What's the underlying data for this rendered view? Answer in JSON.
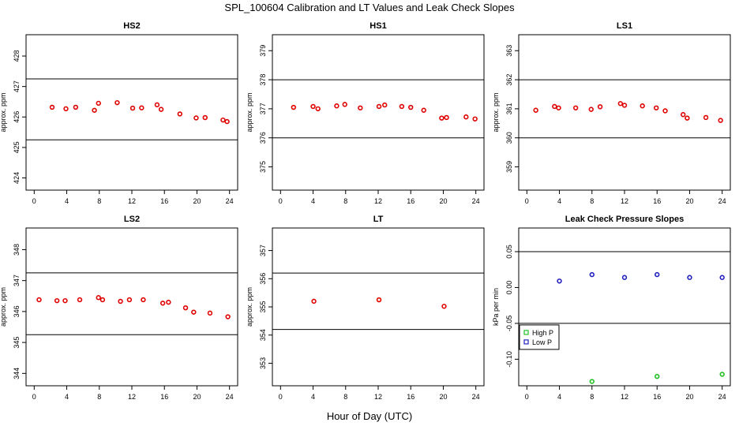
{
  "figure": {
    "title": "SPL_100604  Calibration and LT Values and Leak Check Slopes",
    "xlabel": "Hour of Day (UTC)"
  },
  "colors": {
    "calibration_point": "#e00000",
    "high_p": "#22c022",
    "low_p": "#2020c0",
    "axis": "#000000"
  },
  "chart_data": [
    {
      "type": "scatter",
      "title": "HS2",
      "ylabel": "approx. ppm",
      "xlim": [
        -1,
        25
      ],
      "ylim": [
        423.6,
        428.7
      ],
      "xticks": [
        0,
        4,
        8,
        12,
        16,
        20,
        24
      ],
      "xtick_labels": [
        "0",
        "4",
        "8",
        "12",
        "16",
        "20",
        "24"
      ],
      "yticks": [
        424,
        425,
        426,
        427,
        428
      ],
      "ytick_labels": [
        "424",
        "425",
        "426",
        "427",
        "428"
      ],
      "hlines": [
        427.25,
        425.25
      ],
      "series": [
        {
          "marker": "o",
          "color": "#e00000",
          "x": [
            2.2,
            3.9,
            5.1,
            7.4,
            7.9,
            10.2,
            12.1,
            13.2,
            15.1,
            15.6,
            17.9,
            19.9,
            21.0,
            23.2,
            23.7
          ],
          "y": [
            426.32,
            426.27,
            426.32,
            426.22,
            426.45,
            426.47,
            426.29,
            426.3,
            426.4,
            426.25,
            426.1,
            425.97,
            425.98,
            425.9,
            425.85
          ]
        }
      ]
    },
    {
      "type": "scatter",
      "title": "HS1",
      "ylabel": "approx. ppm",
      "xlim": [
        -1,
        25
      ],
      "ylim": [
        374.2,
        379.55
      ],
      "xticks": [
        0,
        4,
        8,
        12,
        16,
        20,
        24
      ],
      "xtick_labels": [
        "0",
        "4",
        "8",
        "12",
        "16",
        "20",
        "24"
      ],
      "yticks": [
        375,
        376,
        377,
        378,
        379
      ],
      "ytick_labels": [
        "375",
        "376",
        "377",
        "378",
        "379"
      ],
      "hlines": [
        378.0,
        376.0
      ],
      "series": [
        {
          "marker": "o",
          "color": "#e00000",
          "x": [
            1.6,
            4.0,
            4.6,
            6.9,
            7.9,
            9.8,
            12.1,
            12.8,
            14.9,
            16.0,
            17.6,
            19.8,
            20.4,
            22.8,
            23.9
          ],
          "y": [
            377.05,
            377.08,
            377.0,
            377.1,
            377.15,
            377.03,
            377.08,
            377.13,
            377.08,
            377.05,
            376.95,
            376.68,
            376.7,
            376.72,
            376.65
          ]
        }
      ]
    },
    {
      "type": "scatter",
      "title": "LS1",
      "ylabel": "approx. ppm",
      "xlim": [
        -1,
        25
      ],
      "ylim": [
        358.2,
        363.55
      ],
      "xticks": [
        0,
        4,
        8,
        12,
        16,
        20,
        24
      ],
      "xtick_labels": [
        "0",
        "4",
        "8",
        "12",
        "16",
        "20",
        "24"
      ],
      "yticks": [
        359,
        360,
        361,
        362,
        363
      ],
      "ytick_labels": [
        "359",
        "360",
        "361",
        "362",
        "363"
      ],
      "hlines": [
        362.0,
        360.0
      ],
      "series": [
        {
          "marker": "o",
          "color": "#e00000",
          "x": [
            1.1,
            3.4,
            3.9,
            6.0,
            7.9,
            9.0,
            11.5,
            12.0,
            14.2,
            15.9,
            17.0,
            19.2,
            19.7,
            22.0,
            23.8
          ],
          "y": [
            360.95,
            361.08,
            361.03,
            361.03,
            360.98,
            361.07,
            361.18,
            361.12,
            361.1,
            361.03,
            360.93,
            360.8,
            360.68,
            360.7,
            360.6
          ]
        }
      ]
    },
    {
      "type": "scatter",
      "title": "LS2",
      "ylabel": "approx. ppm",
      "xlim": [
        -1,
        25
      ],
      "ylim": [
        343.6,
        348.7
      ],
      "xticks": [
        0,
        4,
        8,
        12,
        16,
        20,
        24
      ],
      "xtick_labels": [
        "0",
        "4",
        "8",
        "12",
        "16",
        "20",
        "24"
      ],
      "yticks": [
        344,
        345,
        346,
        347,
        348
      ],
      "ytick_labels": [
        "344",
        "345",
        "346",
        "347",
        "348"
      ],
      "hlines": [
        347.25,
        345.25
      ],
      "series": [
        {
          "marker": "o",
          "color": "#e00000",
          "x": [
            0.6,
            2.8,
            3.8,
            5.6,
            7.9,
            8.4,
            10.6,
            11.7,
            13.4,
            15.8,
            16.5,
            18.6,
            19.6,
            21.6,
            23.8
          ],
          "y": [
            346.38,
            346.35,
            346.35,
            346.38,
            346.45,
            346.38,
            346.33,
            346.38,
            346.38,
            346.27,
            346.3,
            346.12,
            345.98,
            345.95,
            345.83
          ]
        }
      ]
    },
    {
      "type": "scatter",
      "title": "LT",
      "ylabel": "approx. ppm",
      "xlim": [
        -1,
        25
      ],
      "ylim": [
        352.2,
        357.8
      ],
      "xticks": [
        0,
        4,
        8,
        12,
        16,
        20,
        24
      ],
      "xtick_labels": [
        "0",
        "4",
        "8",
        "12",
        "16",
        "20",
        "24"
      ],
      "yticks": [
        353,
        354,
        355,
        356,
        357
      ],
      "ytick_labels": [
        "353",
        "354",
        "355",
        "356",
        "357"
      ],
      "hlines": [
        356.2,
        354.2
      ],
      "series": [
        {
          "marker": "o",
          "color": "#e00000",
          "x": [
            4.1,
            12.1,
            20.1
          ],
          "y": [
            355.2,
            355.25,
            355.02
          ]
        }
      ]
    },
    {
      "type": "scatter",
      "title": "Leak Check Pressure Slopes",
      "ylabel": "kPa per min",
      "xlim": [
        -1,
        25
      ],
      "ylim": [
        -0.137,
        0.083
      ],
      "xticks": [
        0,
        4,
        8,
        12,
        16,
        20,
        24
      ],
      "xtick_labels": [
        "0",
        "4",
        "8",
        "12",
        "16",
        "20",
        "24"
      ],
      "yticks": [
        -0.1,
        -0.05,
        0.0,
        0.05
      ],
      "ytick_labels": [
        "-0.10",
        "-0.05",
        "0.00",
        "0.05"
      ],
      "hlines": [
        0.05,
        -0.05
      ],
      "legend": {
        "position": "left",
        "entries": [
          {
            "label": "High P",
            "color": "#22c022"
          },
          {
            "label": "Low P",
            "color": "#2020c0"
          }
        ]
      },
      "series": [
        {
          "name": "High P",
          "marker": "o",
          "color": "#22c022",
          "x": [
            8.0,
            16.0,
            24.0
          ],
          "y": [
            -0.131,
            -0.124,
            -0.121
          ]
        },
        {
          "name": "Low P",
          "marker": "o",
          "color": "#2020c0",
          "x": [
            4.0,
            8.0,
            12.0,
            16.0,
            20.0,
            24.0
          ],
          "y": [
            0.009,
            0.018,
            0.014,
            0.018,
            0.014,
            0.014
          ]
        }
      ]
    }
  ]
}
